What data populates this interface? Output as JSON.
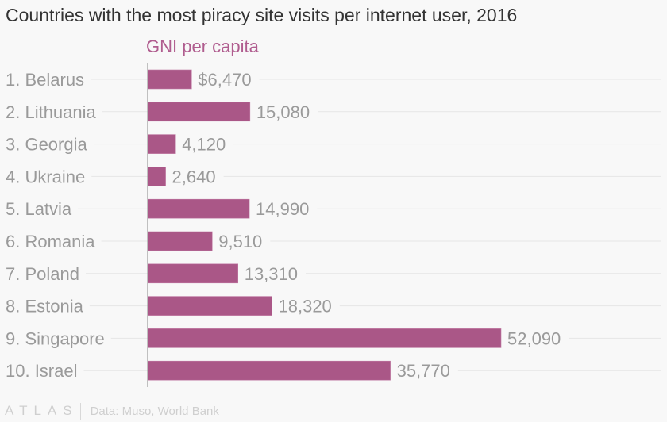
{
  "chart_data": {
    "type": "bar",
    "orientation": "horizontal",
    "title": "Countries with the most piracy site visits per internet user, 2016",
    "subtitle": "GNI per capita",
    "xlabel": "",
    "ylabel": "",
    "categories": [
      "1. Belarus",
      "2. Lithuania",
      "3. Georgia",
      "4. Ukraine",
      "5. Latvia",
      "6. Romania",
      "7. Poland",
      "8. Estonia",
      "9. Singapore",
      "10. Israel"
    ],
    "values": [
      6470,
      15080,
      4120,
      2640,
      14990,
      9510,
      13310,
      18320,
      52090,
      35770
    ],
    "data_labels": [
      "$6,470",
      "15,080",
      "4,120",
      "2,640",
      "14,990",
      "9,510",
      "13,310",
      "18,320",
      "52,090",
      "35,770"
    ],
    "xlim": [
      0,
      52090
    ],
    "grid": true,
    "legend": "none",
    "bar_color": "#aa5787",
    "subtitle_color": "#b05d8f"
  },
  "footer": {
    "logo": "ATLAS",
    "source": "Data: Muso, World Bank"
  }
}
